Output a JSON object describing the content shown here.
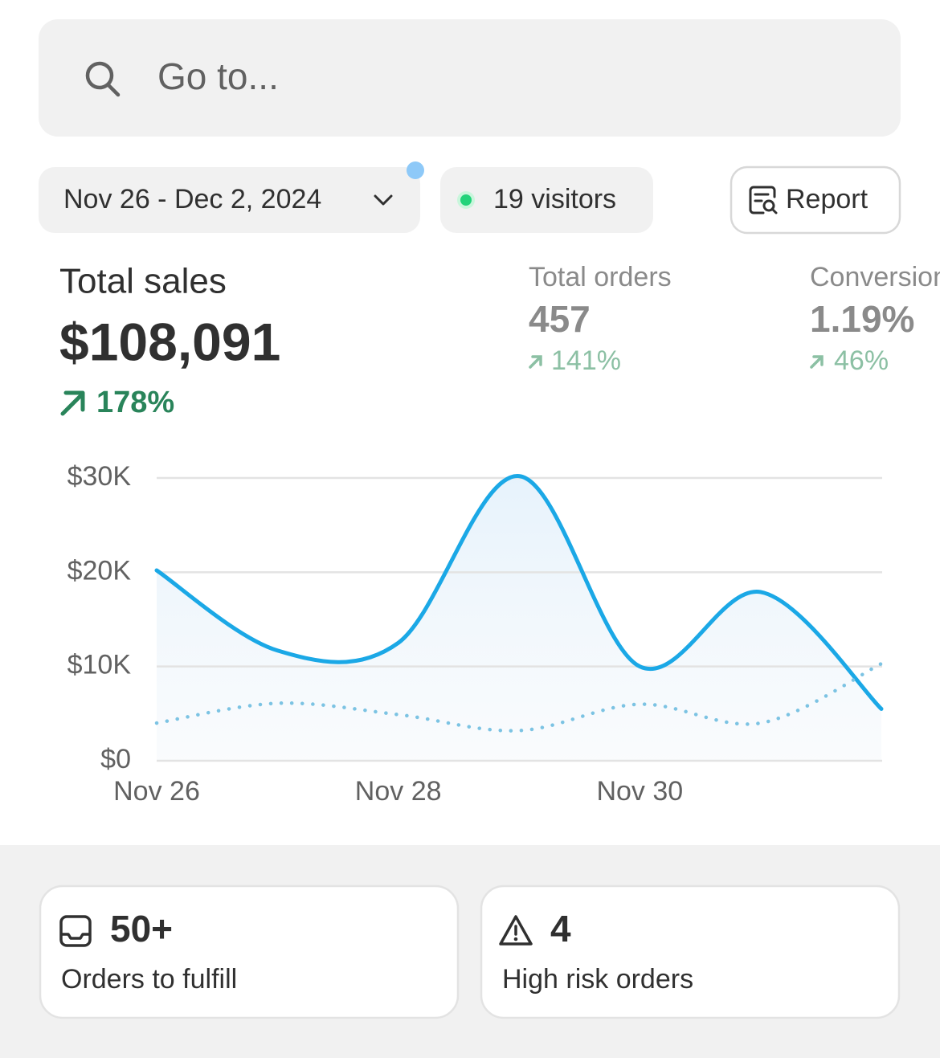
{
  "search": {
    "placeholder": "Go to..."
  },
  "filters": {
    "date_range": "Nov 26 - Dec 2, 2024",
    "visitors": "19 visitors",
    "report": "Report"
  },
  "metrics": [
    {
      "label": "Total sales",
      "value": "$108,091",
      "change": "178%"
    },
    {
      "label": "Total orders",
      "value": "457",
      "change": "141%"
    },
    {
      "label": "Conversion rate",
      "value": "1.19%",
      "change": "46%"
    }
  ],
  "chart_data": {
    "type": "line",
    "categories": [
      "Nov 26",
      null,
      "Nov 28",
      null,
      "Nov 30",
      null,
      null
    ],
    "series": [
      {
        "color": "#1ba8e6",
        "values": [
          20200,
          11700,
          12500,
          30200,
          10000,
          17900,
          5500
        ]
      },
      {
        "color": "#7cc3e3",
        "values": [
          4000,
          6100,
          4900,
          3200,
          6000,
          4000,
          10300
        ]
      }
    ],
    "ylim": [
      0,
      30000
    ],
    "yticks": [
      {
        "value": 0,
        "label": "$0"
      },
      {
        "value": 10000,
        "label": "$10K"
      },
      {
        "value": 20000,
        "label": "$20K"
      },
      {
        "value": 30000,
        "label": "$30K"
      }
    ],
    "grid": true
  },
  "cards": [
    {
      "value": "50+",
      "label": "Orders to fulfill"
    },
    {
      "value": "4",
      "label": "High risk orders"
    }
  ]
}
